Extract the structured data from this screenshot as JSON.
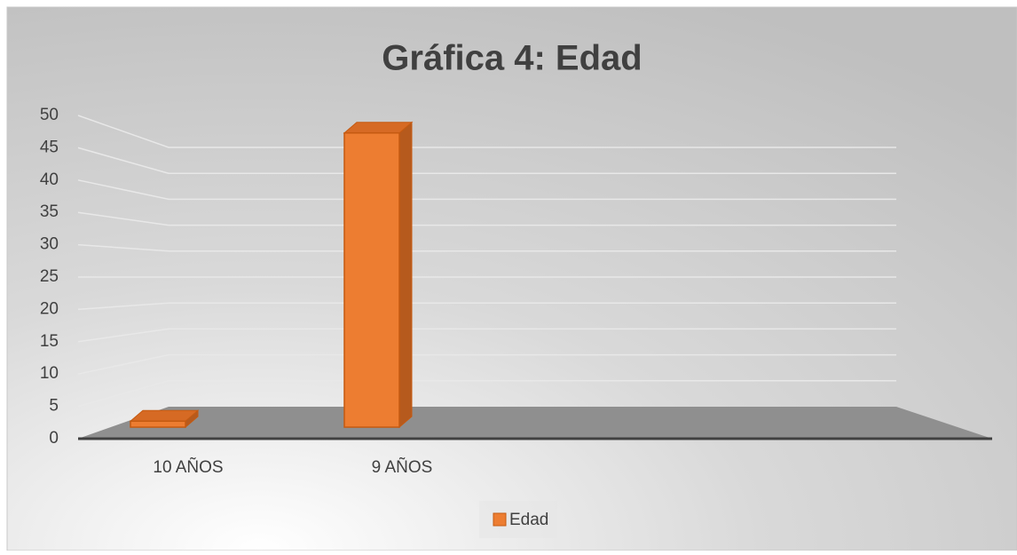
{
  "chart_data": {
    "type": "bar3d",
    "title": "Gráfica 4: Edad",
    "categories": [
      "10 AÑOS",
      "9 AÑOS"
    ],
    "series": [
      {
        "name": "Edad",
        "color": "#ed7d31",
        "values": [
          1,
          49
        ]
      }
    ],
    "ylim": [
      0,
      50
    ],
    "yticks": [
      0,
      5,
      10,
      15,
      20,
      25,
      30,
      35,
      40,
      45,
      50
    ],
    "grid": true,
    "legend": "bottom"
  }
}
